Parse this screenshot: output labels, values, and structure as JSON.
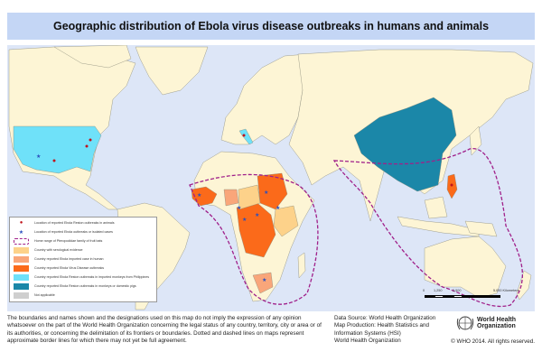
{
  "title": "Geographic distribution of Ebola virus disease outbreaks in humans and animals",
  "colors": {
    "ocean": "#dde6f7",
    "land": "#fdf5d5",
    "serological": "#fdd28a",
    "imported_human": "#f9a67a",
    "evd_outbreak": "#fb6a1a",
    "reston_imported_monkeys": "#6fe1f9",
    "reston_monkeys_pigs": "#1b87a8",
    "not_applicable": "#cfcfcf",
    "bat_range": "#a0208a",
    "reston_animal_dot": "#c0141c",
    "ebola_star": "#2a4fbf"
  },
  "legend": {
    "items": [
      {
        "icon": "red-dot-icon",
        "label": "Location of reported Ebola Reston outbreaks in animals"
      },
      {
        "icon": "blue-star-icon",
        "label": "Location of reported Ebola outbreaks or isolated cases"
      },
      {
        "icon": "dashed-outline-icon",
        "label": "Home range of Pteropodidae family of fruit bats"
      },
      {
        "color": "#fdd28a",
        "label": "Country with serological evidence"
      },
      {
        "color": "#f9a67a",
        "label": "Country reported Ebola imported case in human"
      },
      {
        "color": "#fb6a1a",
        "label": "Country reported Ebola Virus Disease outbreaks"
      },
      {
        "color": "#6fe1f9",
        "label": "Country reported Ebola Reston outbreaks in imported monkeys from Philippines"
      },
      {
        "color": "#1b87a8",
        "label": "Country reported Ebola Reston outbreaks in monkeys or domestic pigs"
      },
      {
        "color": "#cfcfcf",
        "label": "Not applicable"
      }
    ]
  },
  "scale": {
    "labels": [
      "0",
      "1,250",
      "2,500",
      "5,000 Kilometers"
    ]
  },
  "disclaimer": "The boundaries and names shown and the designations used on this map do not imply the expression of any opinion whatsoever on the part of the World Health Organization concerning the legal status of any country, territory, city or area or of its authorities, or concerning the delimitation of its frontiers or boundaries. Dotted and dashed lines on maps represent approximate border lines for which there may not yet be full agreement.",
  "source": {
    "line1": "Data Source: World Health Organization",
    "line2": "Map Production: Health Statistics and Information Systems (HSI)",
    "line3": "World Health Organization"
  },
  "logo": {
    "line1": "World Health",
    "line2": "Organization"
  },
  "copyright": "© WHO 2014. All rights reserved."
}
